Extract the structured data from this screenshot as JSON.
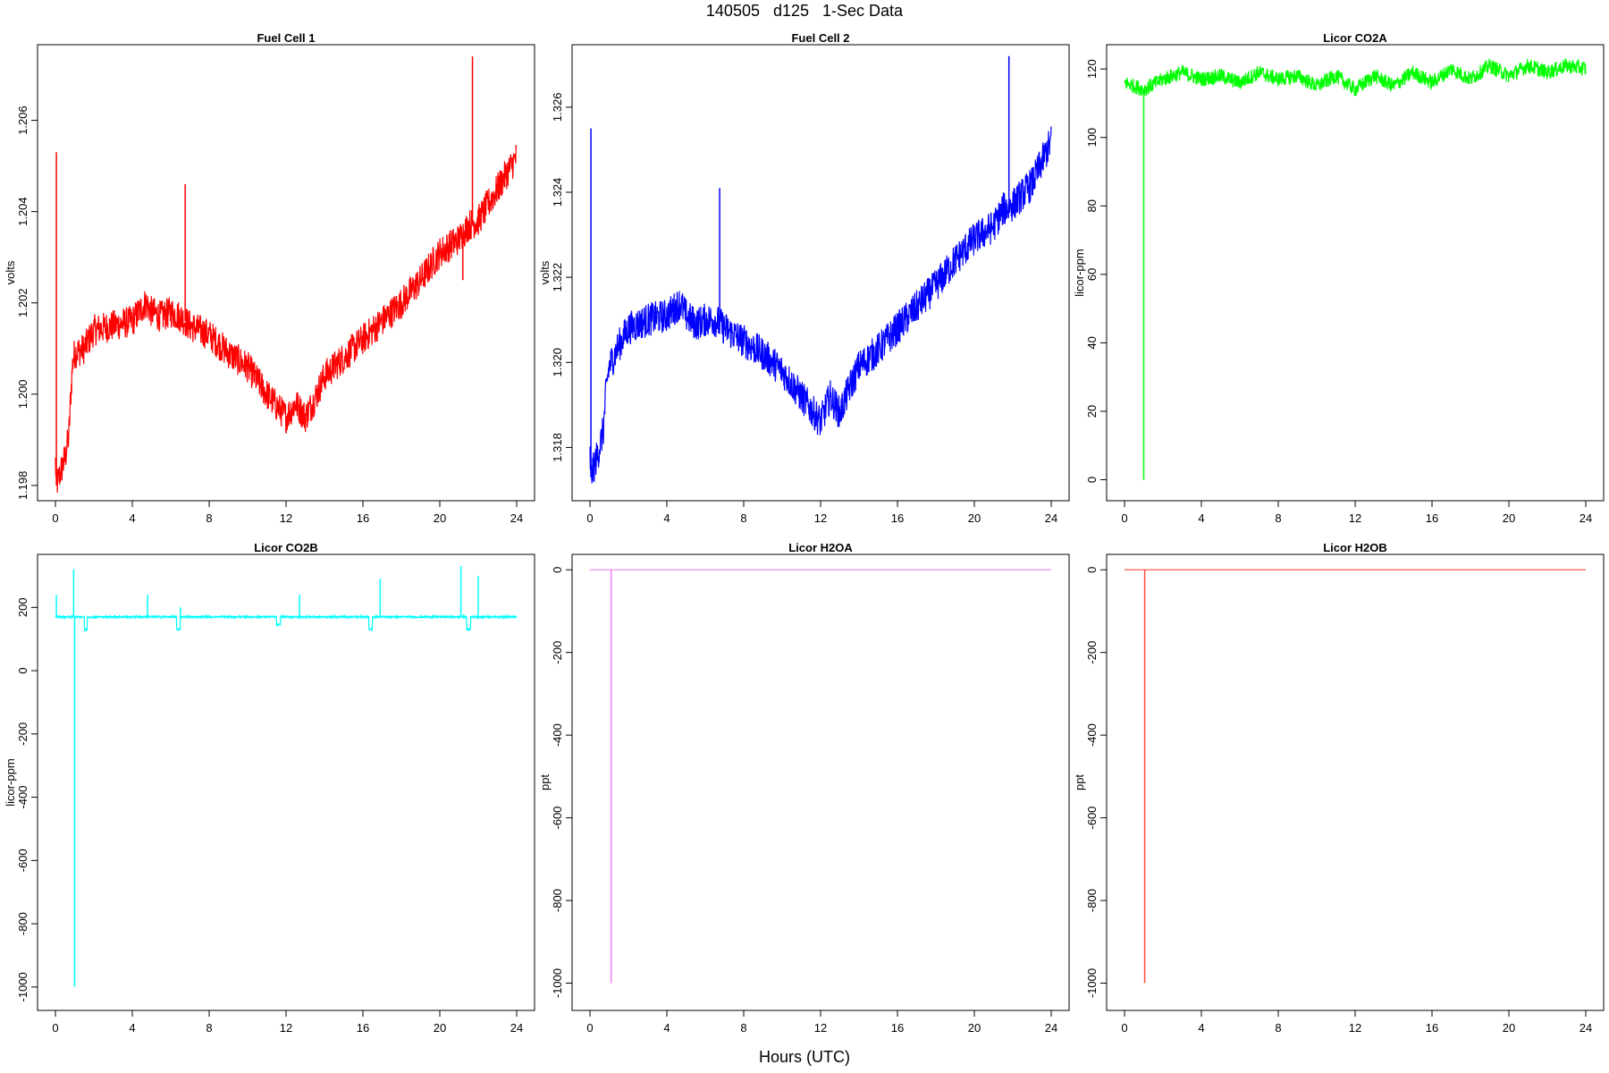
{
  "figure": {
    "title": "140505   d125   1-Sec Data",
    "xlabel": "Hours (UTC)"
  },
  "chart_data": [
    {
      "type": "line",
      "title": "Fuel Cell 1",
      "ylabel": "volts",
      "color": "#ff0000",
      "xlim": [
        0,
        24
      ],
      "ylim": [
        1.1979,
        1.2075
      ],
      "xticks": [
        0,
        4,
        8,
        12,
        16,
        20,
        24
      ],
      "yticks": [
        1.198,
        1.2,
        1.202,
        1.204,
        1.206
      ],
      "ytick_labels": [
        "1.198",
        "1.200",
        "1.202",
        "1.204",
        "1.206"
      ],
      "noise": 0.00035,
      "x": [
        0,
        0.05,
        0.5,
        0.7,
        0.8,
        0.9,
        1.0,
        1.5,
        2,
        3,
        4,
        4.7,
        5,
        5.5,
        6,
        6.5,
        7,
        8,
        9,
        10,
        11,
        12,
        12.5,
        13,
        13.5,
        14,
        15,
        16,
        17,
        18,
        19,
        20,
        21,
        21.5,
        22,
        23,
        24
      ],
      "y": [
        1.1985,
        1.198,
        1.1986,
        1.1991,
        1.2,
        1.2007,
        1.2009,
        1.201,
        1.2014,
        1.2015,
        1.2016,
        1.202,
        1.2018,
        1.2017,
        1.2018,
        1.2017,
        1.2015,
        1.2013,
        1.2009,
        1.2006,
        1.2,
        1.1995,
        1.1998,
        1.1995,
        1.1999,
        1.2004,
        1.2008,
        1.2012,
        1.2016,
        1.202,
        1.2025,
        1.2031,
        1.2034,
        1.2037,
        1.2038,
        1.2045,
        1.2052
      ],
      "spikes": [
        [
          0.05,
          1.2053
        ],
        [
          6.75,
          1.2046
        ],
        [
          21.7,
          1.2074
        ],
        [
          21.2,
          1.2025
        ]
      ]
    },
    {
      "type": "line",
      "title": "Fuel Cell 2",
      "ylabel": "volts",
      "color": "#0000ff",
      "xlim": [
        0,
        24
      ],
      "ylim": [
        1.317,
        1.3273
      ],
      "xticks": [
        0,
        4,
        8,
        12,
        16,
        20,
        24
      ],
      "yticks": [
        1.318,
        1.32,
        1.322,
        1.324,
        1.326
      ],
      "ytick_labels": [
        "1.318",
        "1.320",
        "1.322",
        "1.324",
        "1.326"
      ],
      "noise": 0.0004,
      "x": [
        0,
        0.05,
        0.5,
        0.7,
        0.8,
        0.9,
        1.0,
        1.5,
        2,
        3,
        4,
        4.7,
        5,
        5.5,
        6,
        6.5,
        7,
        8,
        9,
        10,
        11,
        12,
        12.5,
        13,
        13.5,
        14,
        15,
        16,
        17,
        18,
        19,
        20,
        21,
        21.5,
        22,
        23,
        24
      ],
      "y": [
        1.3178,
        1.3173,
        1.318,
        1.3184,
        1.3191,
        1.3196,
        1.3199,
        1.3204,
        1.3208,
        1.321,
        1.3211,
        1.3214,
        1.3211,
        1.3209,
        1.321,
        1.321,
        1.3208,
        1.3205,
        1.3202,
        1.3198,
        1.3192,
        1.3186,
        1.3192,
        1.3188,
        1.3194,
        1.3199,
        1.3203,
        1.3208,
        1.3213,
        1.3218,
        1.3224,
        1.3229,
        1.3232,
        1.3236,
        1.3237,
        1.3242,
        1.3252
      ],
      "spikes": [
        [
          0.05,
          1.3255
        ],
        [
          6.75,
          1.3241
        ],
        [
          21.8,
          1.3272
        ]
      ]
    },
    {
      "type": "line",
      "title": "Licor CO2A",
      "ylabel": "licor-ppm",
      "color": "#00ff00",
      "xlim": [
        0,
        24
      ],
      "ylim": [
        -3,
        125
      ],
      "xticks": [
        0,
        4,
        8,
        12,
        16,
        20,
        24
      ],
      "yticks": [
        0,
        20,
        40,
        60,
        80,
        100,
        120
      ],
      "ytick_labels": [
        "0",
        "20",
        "40",
        "60",
        "80",
        "100",
        "120"
      ],
      "noise": 2.2,
      "x": [
        0,
        1,
        2,
        3,
        4,
        5,
        6,
        7,
        8,
        9,
        10,
        11,
        12,
        13,
        14,
        15,
        16,
        17,
        18,
        19,
        20,
        21,
        22,
        23,
        24
      ],
      "y": [
        116,
        114,
        117,
        119,
        117,
        118,
        116,
        119,
        117,
        118,
        115,
        118,
        114,
        118,
        115,
        119,
        116,
        120,
        117,
        121,
        118,
        121,
        119,
        121,
        120
      ],
      "spikes": [
        [
          1.0,
          0
        ]
      ]
    },
    {
      "type": "line",
      "title": "Licor CO2B",
      "ylabel": "licor-ppm",
      "color": "#00ffff",
      "xlim": [
        0,
        24
      ],
      "ylim": [
        -1040,
        345
      ],
      "xticks": [
        0,
        4,
        8,
        12,
        16,
        20,
        24
      ],
      "yticks": [
        -1000,
        -800,
        -600,
        -400,
        -200,
        0,
        200
      ],
      "ytick_labels": [
        "-1000",
        "-800",
        "-600",
        "-400",
        "-200",
        "0",
        "200"
      ],
      "noise": 3,
      "x": [
        0,
        24
      ],
      "y": [
        170,
        170
      ],
      "dips": [
        [
          1.5,
          1.65,
          130
        ],
        [
          6.3,
          6.5,
          130
        ],
        [
          11.5,
          11.7,
          145
        ],
        [
          16.3,
          16.5,
          130
        ],
        [
          21.4,
          21.6,
          130
        ]
      ],
      "spikes": [
        [
          0.05,
          240
        ],
        [
          1.0,
          -1000
        ],
        [
          0.95,
          320
        ],
        [
          4.8,
          240
        ],
        [
          6.5,
          200
        ],
        [
          12.7,
          240
        ],
        [
          16.9,
          290
        ],
        [
          21.1,
          330
        ],
        [
          22.0,
          300
        ]
      ]
    },
    {
      "type": "line",
      "title": "Licor H2OA",
      "ylabel": "ppt",
      "color": "#ee82ee",
      "xlim": [
        0,
        24
      ],
      "ylim": [
        -1040,
        20
      ],
      "xticks": [
        0,
        4,
        8,
        12,
        16,
        20,
        24
      ],
      "yticks": [
        -1000,
        -800,
        -600,
        -400,
        -200,
        0
      ],
      "ytick_labels": [
        "-1000",
        "-800",
        "-600",
        "-400",
        "-200",
        "0"
      ],
      "noise": 0,
      "x": [
        0,
        24
      ],
      "y": [
        0,
        0
      ],
      "spikes": [
        [
          1.1,
          -1000
        ]
      ]
    },
    {
      "type": "line",
      "title": "Licor H2OB",
      "ylabel": "ppt",
      "color": "#ff4a3d",
      "xlim": [
        0,
        24
      ],
      "ylim": [
        -1040,
        20
      ],
      "xticks": [
        0,
        4,
        8,
        12,
        16,
        20,
        24
      ],
      "yticks": [
        -1000,
        -800,
        -600,
        -400,
        -200,
        0
      ],
      "ytick_labels": [
        "-1000",
        "-800",
        "-600",
        "-400",
        "-200",
        "0"
      ],
      "noise": 0,
      "x": [
        0,
        24
      ],
      "y": [
        0,
        0
      ],
      "spikes": [
        [
          1.05,
          -1000
        ]
      ]
    }
  ]
}
